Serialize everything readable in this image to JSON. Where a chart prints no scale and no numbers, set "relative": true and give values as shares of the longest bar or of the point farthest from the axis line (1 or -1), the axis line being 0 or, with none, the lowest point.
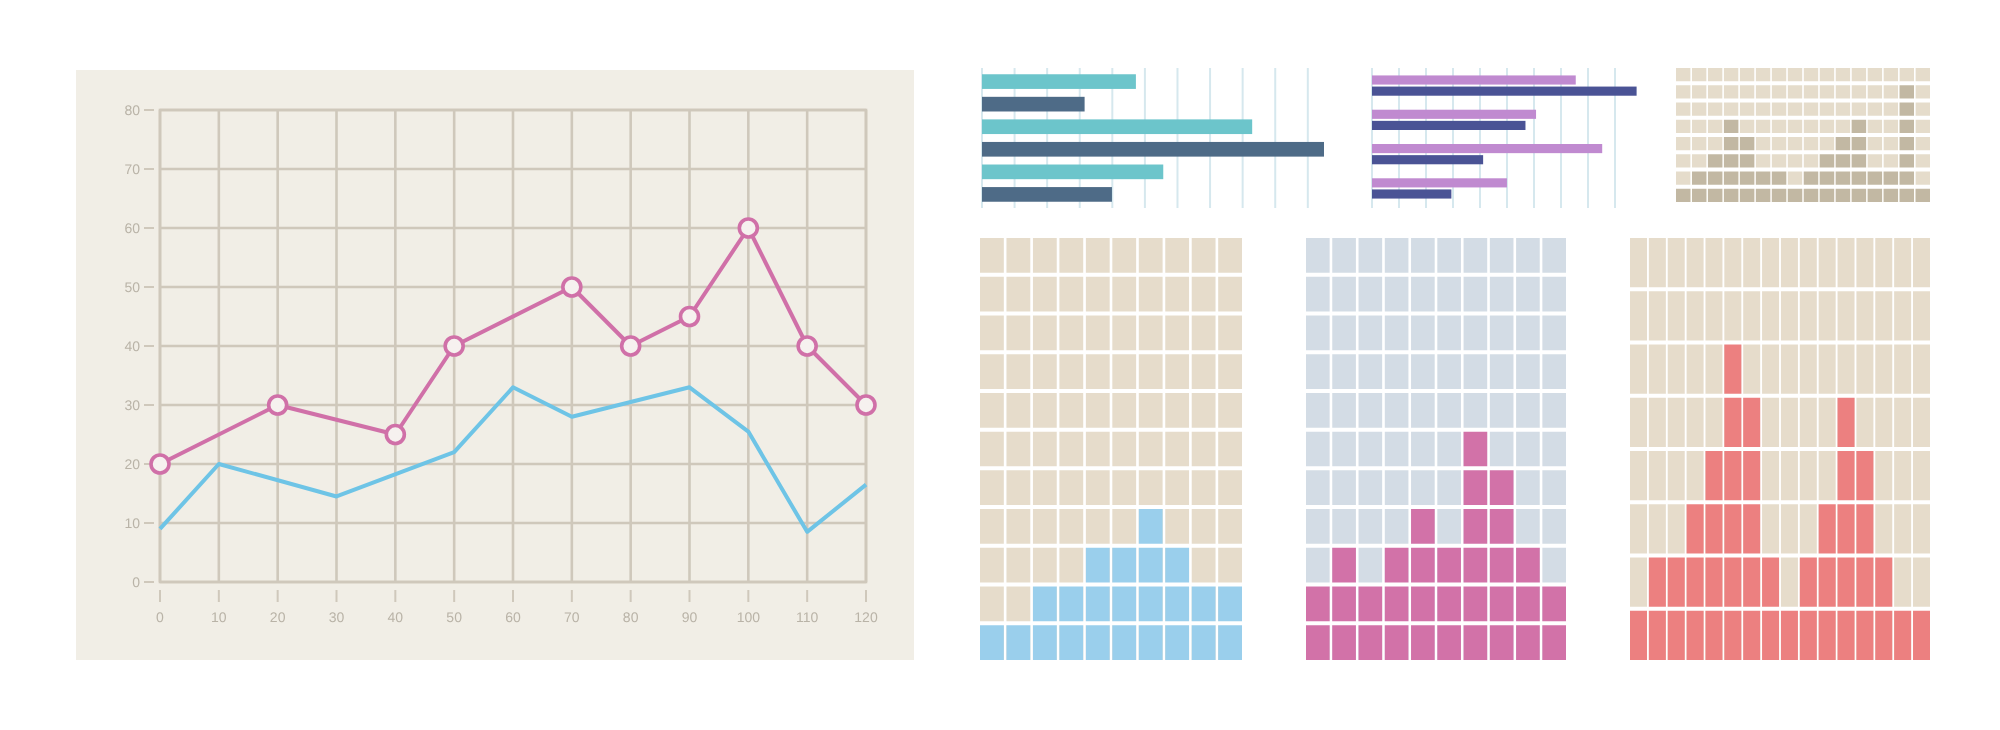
{
  "chart_data": [
    {
      "type": "line",
      "xlim": [
        0,
        120
      ],
      "xticks": [
        0,
        10,
        20,
        30,
        40,
        50,
        60,
        70,
        80,
        90,
        100,
        110,
        120
      ],
      "ylim": [
        0,
        80
      ],
      "yticks": [
        0,
        10,
        20,
        30,
        40,
        50,
        60,
        70,
        80
      ],
      "grid": true,
      "series": [
        {
          "color": "#d070a8",
          "marker": "circle",
          "x": [
            0,
            20,
            40,
            50,
            70,
            80,
            90,
            100,
            110,
            120
          ],
          "values": [
            20,
            30,
            25,
            40,
            50,
            40,
            45,
            60,
            40,
            30
          ]
        },
        {
          "color": "#6ec4e6",
          "x": [
            0,
            10,
            30,
            50,
            60,
            70,
            90,
            100,
            110,
            120
          ],
          "values": [
            9,
            20,
            14.5,
            22,
            33,
            28,
            33,
            25.5,
            8.5,
            16.5
          ]
        }
      ]
    },
    {
      "type": "bar",
      "orientation": "horizontal",
      "relative": true,
      "categories": [
        null,
        null,
        null,
        null,
        null,
        null
      ],
      "values": [
        0.45,
        0.3,
        0.79,
        1,
        0.53,
        0.38
      ],
      "colors": [
        "#6cc5cb",
        "#4e6b87",
        "#6cc5cb",
        "#4e6b87",
        "#6cc5cb",
        "#4e6b87"
      ],
      "grid": "x"
    },
    {
      "type": "bar",
      "orientation": "horizontal",
      "relative": true,
      "categories": [
        null,
        null,
        null,
        null
      ],
      "series": [
        {
          "color": "#c08ad0",
          "values": [
            0.77,
            0.62,
            0.87,
            0.51
          ]
        },
        {
          "color": "#4a5395",
          "values": [
            1,
            0.58,
            0.42,
            0.3
          ]
        }
      ],
      "grid": "x"
    },
    {
      "type": "bar",
      "relative": true,
      "categories": [
        null,
        null,
        null,
        null,
        null,
        null,
        null,
        null,
        null,
        null,
        null,
        null,
        null,
        null,
        null,
        null
      ],
      "values": [
        0.14,
        0.29,
        0.43,
        0.71,
        0.57,
        0.29,
        0.29,
        0.14,
        0.29,
        0.43,
        0.57,
        0.71,
        0.29,
        0.29,
        1,
        0.14
      ],
      "color": "#c2b8a3",
      "grid": "y"
    },
    {
      "type": "bar",
      "relative": true,
      "categories": [
        null,
        null,
        null,
        null,
        null,
        null,
        null,
        null,
        null,
        null
      ],
      "values": [
        0.25,
        0.25,
        0.5,
        0.5,
        0.75,
        0.75,
        1,
        0.75,
        0.5,
        0.5
      ],
      "color": "#9acfec",
      "grid": "y"
    },
    {
      "type": "bar",
      "relative": true,
      "categories": [
        null,
        null,
        null,
        null,
        null,
        null,
        null,
        null,
        null,
        null
      ],
      "values": [
        0.33,
        0.5,
        0.33,
        0.5,
        0.67,
        0.5,
        1,
        0.83,
        0.5,
        0.33
      ],
      "color": "#d272a8",
      "grid": "y"
    },
    {
      "type": "bar",
      "relative": true,
      "categories": [
        null,
        null,
        null,
        null,
        null,
        null,
        null,
        null,
        null,
        null,
        null,
        null,
        null,
        null,
        null,
        null
      ],
      "values": [
        0.17,
        0.33,
        0.33,
        0.5,
        0.67,
        1,
        0.83,
        0.33,
        0.17,
        0.33,
        0.5,
        0.83,
        0.67,
        0.33,
        0.17,
        0.17
      ],
      "color": "#ec8080",
      "grid": "y"
    }
  ]
}
